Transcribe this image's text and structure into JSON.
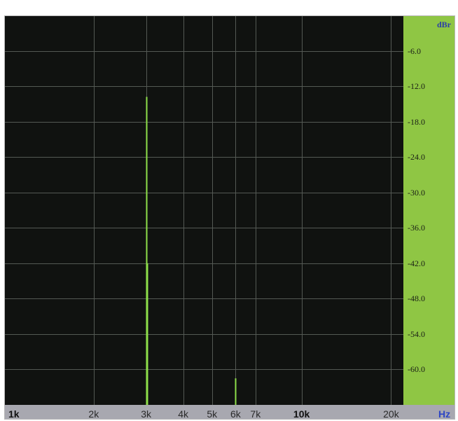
{
  "chart_data": {
    "type": "bar",
    "xscale": "log",
    "xlim": [
      1000,
      22000
    ],
    "ylim": [
      -66,
      0
    ],
    "grid": true,
    "x_unit": "Hz",
    "y_unit": "dBr",
    "x_ticks": [
      {
        "value": 1000,
        "label": "1k",
        "bold": true
      },
      {
        "value": 2000,
        "label": "2k",
        "bold": false
      },
      {
        "value": 3000,
        "label": "3k",
        "bold": false
      },
      {
        "value": 4000,
        "label": "4k",
        "bold": false
      },
      {
        "value": 5000,
        "label": "5k",
        "bold": false
      },
      {
        "value": 6000,
        "label": "6k",
        "bold": false
      },
      {
        "value": 7000,
        "label": "7k",
        "bold": false
      },
      {
        "value": 10000,
        "label": "10k",
        "bold": true
      },
      {
        "value": 20000,
        "label": "20k",
        "bold": false
      }
    ],
    "y_ticks": [
      {
        "value": -6,
        "label": "-6.0"
      },
      {
        "value": -12,
        "label": "-12.0"
      },
      {
        "value": -18,
        "label": "-18.0"
      },
      {
        "value": -24,
        "label": "-24.0"
      },
      {
        "value": -30,
        "label": "-30.0"
      },
      {
        "value": -36,
        "label": "-36.0"
      },
      {
        "value": -42,
        "label": "-42.0"
      },
      {
        "value": -48,
        "label": "-48.0"
      },
      {
        "value": -54,
        "label": "-54.0"
      },
      {
        "value": -60,
        "label": "-60.0"
      }
    ],
    "series": [
      {
        "color": "#8ee04a",
        "points": [
          {
            "x": 3000,
            "y": -13.8
          },
          {
            "x": 3030,
            "y": -42.0
          },
          {
            "x": 6000,
            "y": -61.5
          }
        ]
      }
    ],
    "colors": {
      "plot_bg": "#101210",
      "grid": "#545954",
      "y_axis_panel": "#8fc644",
      "x_axis_strip": "#a8a8b0",
      "frame": "#b8b8b8"
    }
  }
}
